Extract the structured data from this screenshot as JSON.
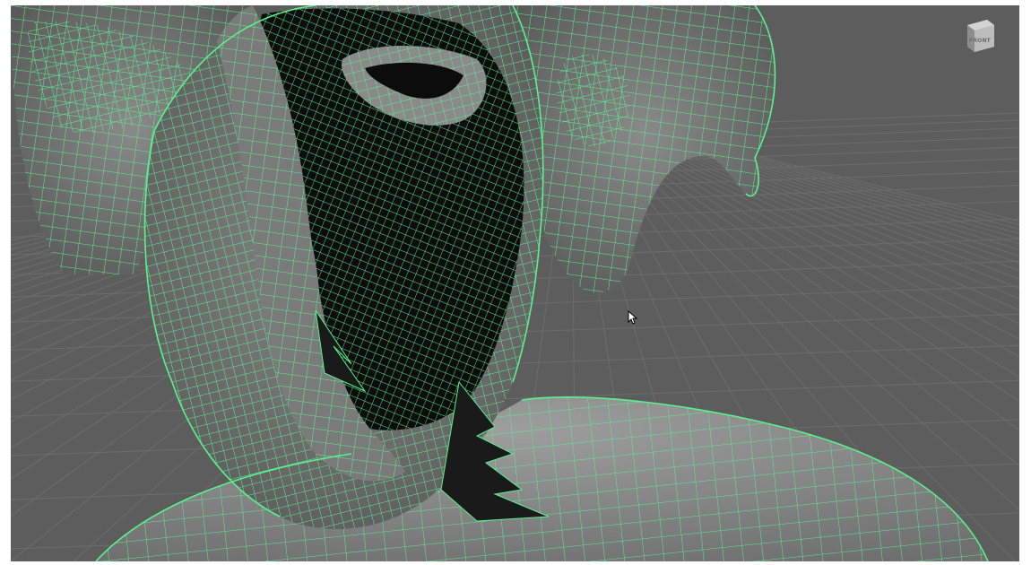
{
  "viewport": {
    "background_color": "#5d5d5d",
    "grid_color": "#6c6c6c",
    "wireframe_color": "#5cf08e",
    "surface_color": "#8d8d8d",
    "cavity_color": "#0c0c0c"
  },
  "view_cube": {
    "label": "FRONT",
    "icon": "view-cube-icon"
  },
  "cursor": {
    "icon": "mouse-pointer-icon"
  }
}
